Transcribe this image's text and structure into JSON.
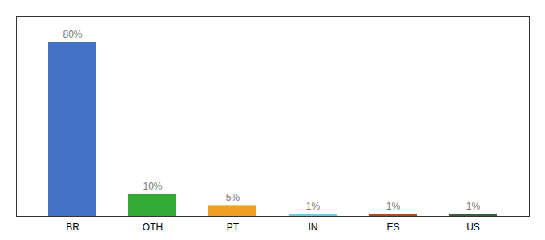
{
  "chart_data": {
    "type": "bar",
    "categories": [
      "BR",
      "OTH",
      "PT",
      "IN",
      "ES",
      "US"
    ],
    "values": [
      80,
      10,
      5,
      1,
      1,
      1
    ],
    "value_labels": [
      "80%",
      "10%",
      "5%",
      "1%",
      "1%",
      "1%"
    ],
    "colors": [
      "#4472c4",
      "#33aa33",
      "#f0a020",
      "#66ccee",
      "#b84c10",
      "#336633"
    ],
    "ylim": [
      0,
      92
    ],
    "data_labels": true,
    "tick_labels": "x",
    "grid": false
  }
}
